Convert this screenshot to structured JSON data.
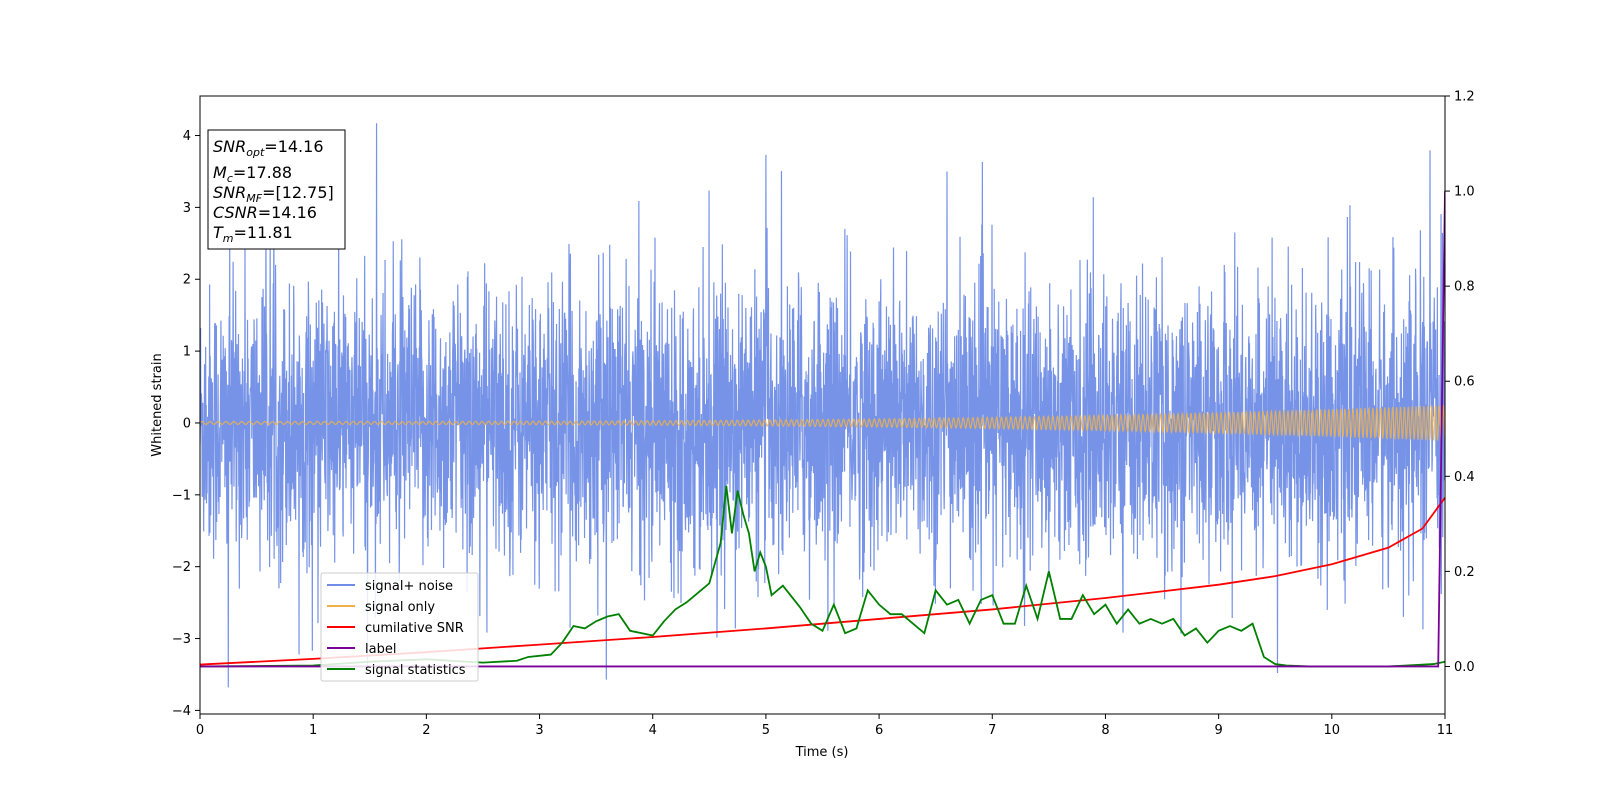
{
  "chart_data": {
    "type": "line",
    "title": "",
    "xlabel": "Time (s)",
    "ylabel": "Whitened strain",
    "xlim": [
      0,
      11
    ],
    "ylim": [
      -4.05,
      4.55
    ],
    "y2lim": [
      -0.1,
      1.2
    ],
    "x_ticks": [
      0,
      1,
      2,
      3,
      4,
      5,
      6,
      7,
      8,
      9,
      10,
      11
    ],
    "y_ticks": [
      -4,
      -3,
      -2,
      -1,
      0,
      1,
      2,
      3,
      4
    ],
    "y2_ticks": [
      0.0,
      0.2,
      0.4,
      0.6,
      0.8,
      1.0,
      1.2
    ],
    "y_tick_labels": [
      "−4",
      "−3",
      "−2",
      "−1",
      "0",
      "1",
      "2",
      "3",
      "4"
    ],
    "y2_tick_labels": [
      "0.0",
      "0.2",
      "0.4",
      "0.6",
      "0.8",
      "1.0",
      "1.2"
    ],
    "grid": false,
    "legend_position": "lower-left",
    "stats_box": {
      "snr_opt": {
        "symbol": "SNR",
        "sub": "opt",
        "value": "=14.16"
      },
      "mc": {
        "symbol": "M",
        "sub": "c",
        "value": "=17.88"
      },
      "snr_mf": {
        "symbol": "SNR",
        "sub": "MF",
        "value": "=[12.75]"
      },
      "csnr": {
        "symbol": "CSNR",
        "sub": "",
        "value": "=14.16"
      },
      "tm": {
        "symbol": "T",
        "sub": "m",
        "value": "=11.81"
      }
    },
    "series": [
      {
        "name": "signal+ noise",
        "axis": "left",
        "color": "#6f8de6",
        "kind": "gaussian noise, std ~1.0, peaks to ~4.17 near t=1.56",
        "peaks": [
          {
            "x": 0.25,
            "y": -3.68
          },
          {
            "x": 1.56,
            "y": 4.17
          },
          {
            "x": 5.0,
            "y": 3.73
          },
          {
            "x": 9.52,
            "y": -3.48
          },
          {
            "x": 6.6,
            "y": 3.5
          }
        ]
      },
      {
        "name": "signal only",
        "axis": "left",
        "color": "#f0b14a",
        "kind": "chirp",
        "amplitude_start": 0.02,
        "amplitude_end": 0.25
      },
      {
        "name": "cumilative SNR",
        "axis": "right",
        "color": "#ff0000",
        "x": [
          0,
          1,
          2,
          3,
          4,
          5,
          6,
          7,
          8,
          9,
          9.5,
          10,
          10.5,
          10.8,
          11
        ],
        "y": [
          0.004,
          0.016,
          0.03,
          0.046,
          0.062,
          0.08,
          0.1,
          0.12,
          0.144,
          0.172,
          0.19,
          0.215,
          0.25,
          0.29,
          0.355
        ]
      },
      {
        "name": "label",
        "axis": "right",
        "color": "#7b0099",
        "x": [
          0,
          10.94,
          10.97,
          11
        ],
        "y": [
          0.0,
          0.0,
          0.5,
          1.0
        ]
      },
      {
        "name": "signal statistics",
        "axis": "right",
        "color": "#008000",
        "x": [
          0,
          1.0,
          1.5,
          2.0,
          2.5,
          2.8,
          2.9,
          3.1,
          3.2,
          3.3,
          3.4,
          3.5,
          3.6,
          3.7,
          3.8,
          3.9,
          4.0,
          4.1,
          4.2,
          4.3,
          4.4,
          4.5,
          4.6,
          4.65,
          4.7,
          4.75,
          4.8,
          4.85,
          4.9,
          4.95,
          5.0,
          5.05,
          5.15,
          5.3,
          5.4,
          5.5,
          5.6,
          5.7,
          5.8,
          5.9,
          6.0,
          6.1,
          6.2,
          6.3,
          6.4,
          6.5,
          6.6,
          6.7,
          6.8,
          6.9,
          7.0,
          7.1,
          7.2,
          7.3,
          7.4,
          7.5,
          7.6,
          7.7,
          7.8,
          7.9,
          8.0,
          8.1,
          8.2,
          8.3,
          8.4,
          8.5,
          8.6,
          8.7,
          8.8,
          8.9,
          9.0,
          9.1,
          9.2,
          9.3,
          9.4,
          9.5,
          9.6,
          9.8,
          10.0,
          10.5,
          10.9,
          11.0
        ],
        "y": [
          0.0,
          0.002,
          0.01,
          0.015,
          0.008,
          0.012,
          0.02,
          0.025,
          0.05,
          0.085,
          0.08,
          0.095,
          0.105,
          0.11,
          0.075,
          0.07,
          0.065,
          0.095,
          0.12,
          0.135,
          0.155,
          0.175,
          0.26,
          0.38,
          0.28,
          0.37,
          0.32,
          0.28,
          0.2,
          0.24,
          0.21,
          0.15,
          0.17,
          0.125,
          0.09,
          0.075,
          0.13,
          0.07,
          0.08,
          0.16,
          0.13,
          0.11,
          0.11,
          0.09,
          0.07,
          0.16,
          0.13,
          0.14,
          0.09,
          0.14,
          0.15,
          0.09,
          0.09,
          0.17,
          0.1,
          0.2,
          0.1,
          0.1,
          0.15,
          0.11,
          0.13,
          0.09,
          0.12,
          0.09,
          0.1,
          0.09,
          0.1,
          0.065,
          0.08,
          0.05,
          0.075,
          0.085,
          0.075,
          0.09,
          0.02,
          0.005,
          0.002,
          0.0,
          0.0,
          0.0,
          0.005,
          0.01
        ]
      }
    ]
  }
}
